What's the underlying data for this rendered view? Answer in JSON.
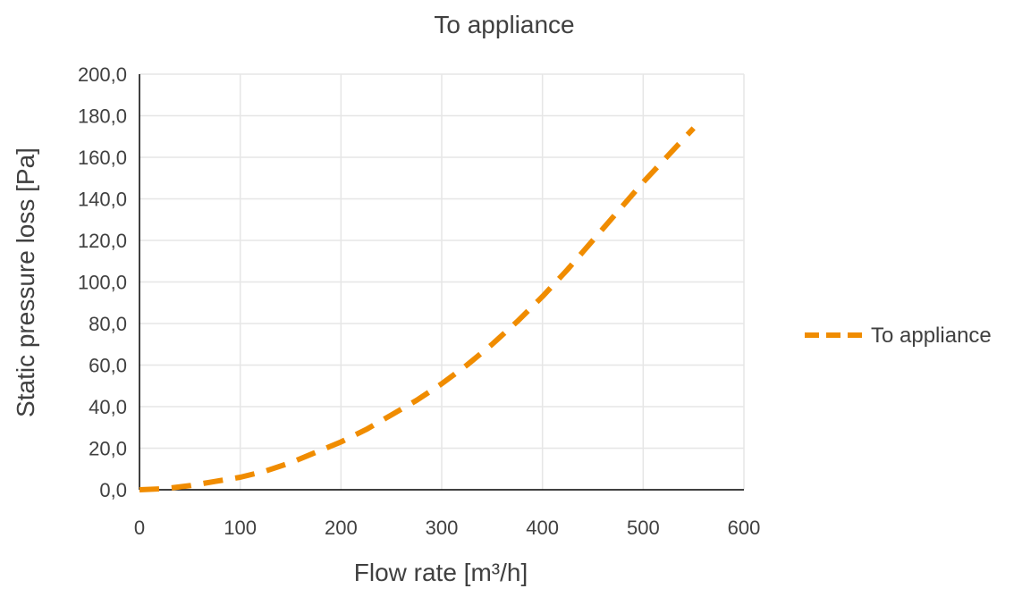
{
  "chart_data": {
    "type": "line",
    "title": "To appliance",
    "xlabel": "Flow rate [m³/h]",
    "ylabel": "Static pressure loss [Pa]",
    "xlim": [
      0,
      600
    ],
    "ylim": [
      0,
      200
    ],
    "x_ticks": [
      "0",
      "100",
      "200",
      "300",
      "400",
      "500",
      "600"
    ],
    "y_ticks": [
      "0,0",
      "20,0",
      "40,0",
      "60,0",
      "80,0",
      "100,0",
      "120,0",
      "140,0",
      "160,0",
      "180,0",
      "200,0"
    ],
    "grid": true,
    "legend_position": "right",
    "series": [
      {
        "name": "To appliance",
        "color": "#f08c00",
        "line_style": "dashed",
        "x": [
          0,
          25,
          50,
          75,
          100,
          125,
          150,
          175,
          200,
          225,
          250,
          275,
          300,
          325,
          350,
          375,
          400,
          425,
          450,
          475,
          500,
          525,
          550
        ],
        "y": [
          0,
          0.5,
          2,
          4,
          6,
          9,
          13,
          18,
          23,
          29,
          36,
          43,
          51,
          60,
          70,
          81,
          93,
          106,
          120,
          134,
          148,
          161,
          174
        ]
      }
    ]
  }
}
